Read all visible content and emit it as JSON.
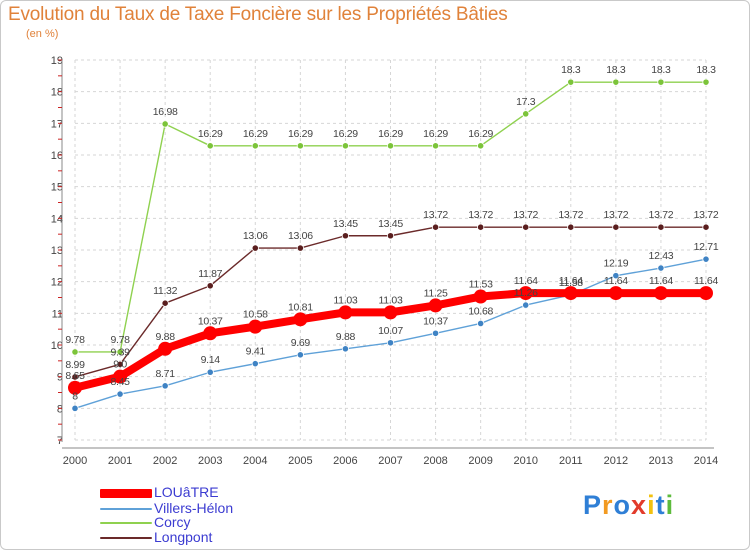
{
  "title": "Evolution du Taux de Taxe Foncière sur les Propriétés Bâties",
  "unit_label": "(en %)",
  "logo": {
    "letters": [
      "P",
      "r",
      "o",
      "x",
      "i",
      "t",
      "i"
    ],
    "colors": [
      "#2f7fd6",
      "#f29a21",
      "#2f7fd6",
      "#e23b2b",
      "#f2c10f",
      "#2f7fd6",
      "#5dbb3c"
    ]
  },
  "chart_data": {
    "type": "line",
    "x": [
      "2000",
      "2001",
      "2002",
      "2003",
      "2004",
      "2005",
      "2006",
      "2007",
      "2008",
      "2009",
      "2010",
      "2011",
      "2012",
      "2013",
      "2014"
    ],
    "ylim": [
      7,
      19
    ],
    "yticks": [
      7,
      8,
      9,
      10,
      11,
      12,
      13,
      14,
      15,
      16,
      17,
      18,
      19
    ],
    "grid": true,
    "legend_placement": "bottom-left",
    "series": [
      {
        "name": "Corcy",
        "color": "#8fd14f",
        "marker": "#7cc43a",
        "values": [
          9.78,
          9.78,
          16.98,
          16.29,
          16.29,
          16.29,
          16.29,
          16.29,
          16.29,
          16.29,
          17.3,
          18.3,
          18.3,
          18.3,
          18.3
        ],
        "labels": [
          "9.78",
          "9.78",
          "16.98",
          "16.29",
          "16.29",
          "16.29",
          "16.29",
          "16.29",
          "16.29",
          "16.29",
          "17.3",
          "18.3",
          "18.3",
          "18.3",
          "18.3"
        ]
      },
      {
        "name": "Longpont",
        "color": "#6b2a2a",
        "marker": "#5a1e1e",
        "values": [
          8.99,
          9.39,
          11.32,
          11.87,
          13.06,
          13.06,
          13.45,
          13.45,
          13.72,
          13.72,
          13.72,
          13.72,
          13.72,
          13.72,
          13.72
        ],
        "labels": [
          "8.99",
          "9.39",
          "11.32",
          "11.87",
          "13.06",
          "13.06",
          "13.45",
          "13.45",
          "13.72",
          "13.72",
          "13.72",
          "13.72",
          "13.72",
          "13.72",
          "13.72"
        ]
      },
      {
        "name": "Villers-Hélon",
        "color": "#5fa1d8",
        "marker": "#3f83c4",
        "values": [
          8,
          8.45,
          8.71,
          9.14,
          9.41,
          9.69,
          9.88,
          10.07,
          10.37,
          10.68,
          11.26,
          11.58,
          12.19,
          12.43,
          12.71
        ],
        "labels": [
          "8",
          "8.45",
          "8.71",
          "9.14",
          "9.41",
          "9.69",
          "9.88",
          "10.07",
          "10.37",
          "10.68",
          "11.26",
          "11.58",
          "12.19",
          "12.43",
          "12.71"
        ]
      },
      {
        "name": "LOUâTRE",
        "color": "#ff0000",
        "marker": "#ff0000",
        "values": [
          8.65,
          9.0,
          9.88,
          10.37,
          10.58,
          10.81,
          11.03,
          11.03,
          11.25,
          11.53,
          11.64,
          11.64,
          11.64,
          11.64,
          11.64
        ],
        "labels": [
          "8.65",
          "9.0",
          "9.88",
          "10.37",
          "10.58",
          "10.81",
          "11.03",
          "11.03",
          "11.25",
          "11.53",
          "11.64",
          "11.64",
          "11.64",
          "11.64",
          "11.64"
        ]
      }
    ]
  },
  "legend": [
    {
      "name": "LOUâTRE",
      "color": "#ff0000",
      "thick": true
    },
    {
      "name": "Villers-Hélon",
      "color": "#5fa1d8",
      "thick": false
    },
    {
      "name": "Corcy",
      "color": "#8fd14f",
      "thick": false
    },
    {
      "name": "Longpont",
      "color": "#6b2a2a",
      "thick": false
    }
  ]
}
